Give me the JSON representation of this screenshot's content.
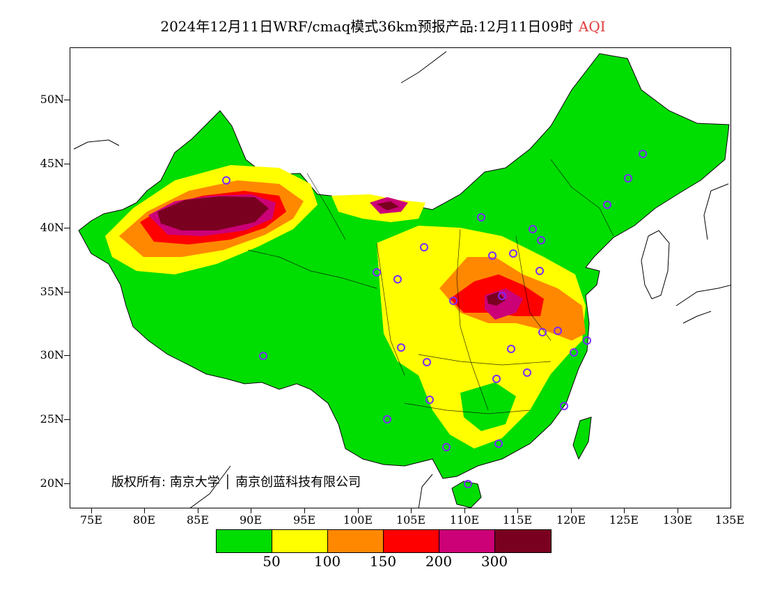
{
  "title": {
    "main": "2024年12月11日WRF/cmaq模式36km预报产品:12月11日09时",
    "variable": "AQI",
    "variable_color": "#e23a3a"
  },
  "axes": {
    "lat_labels": [
      "50N",
      "45N",
      "40N",
      "35N",
      "30N",
      "25N",
      "20N"
    ],
    "lon_labels": [
      "75E",
      "80E",
      "85E",
      "90E",
      "95E",
      "100E",
      "105E",
      "110E",
      "115E",
      "120E",
      "125E",
      "130E",
      "135E"
    ]
  },
  "copyright": "版权所有: 南京大学 │ 南京创蓝科技有限公司",
  "legend": {
    "colors": [
      "#00dd00",
      "#ffff00",
      "#ff8800",
      "#ff0000",
      "#cc0077",
      "#7a0020"
    ],
    "labels": [
      "50",
      "100",
      "150",
      "200",
      "300"
    ]
  },
  "colors": {
    "ocean": "#ffffff",
    "outline": "#000000",
    "station_marker": "#7b2bff"
  }
}
